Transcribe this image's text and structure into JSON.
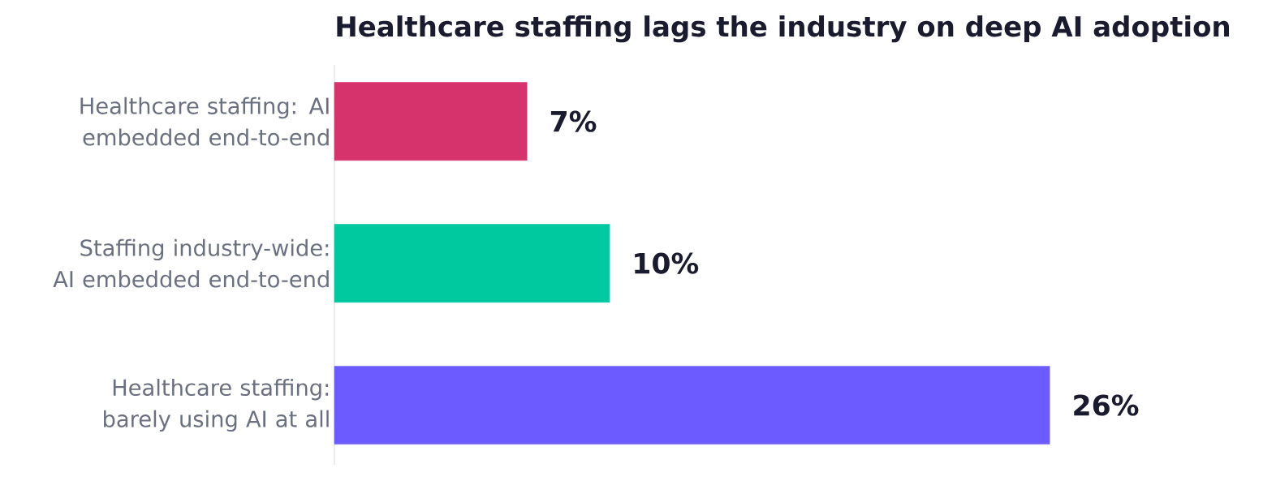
{
  "chart_data": {
    "type": "bar",
    "orientation": "horizontal",
    "title": "Healthcare staffing lags the industry on deep AI adoption",
    "categories": [
      "Healthcare staffing: AI embedded end-to-end",
      "Staffing industry-wide: AI embedded end-to-end",
      "Healthcare staffing: barely using AI at all"
    ],
    "values": [
      7,
      10,
      26
    ],
    "colors": [
      "#d6336c",
      "#00c9a0",
      "#6c5cff"
    ],
    "value_labels": [
      "7%",
      "10%",
      "26%"
    ],
    "tick_labels": "y"
  }
}
